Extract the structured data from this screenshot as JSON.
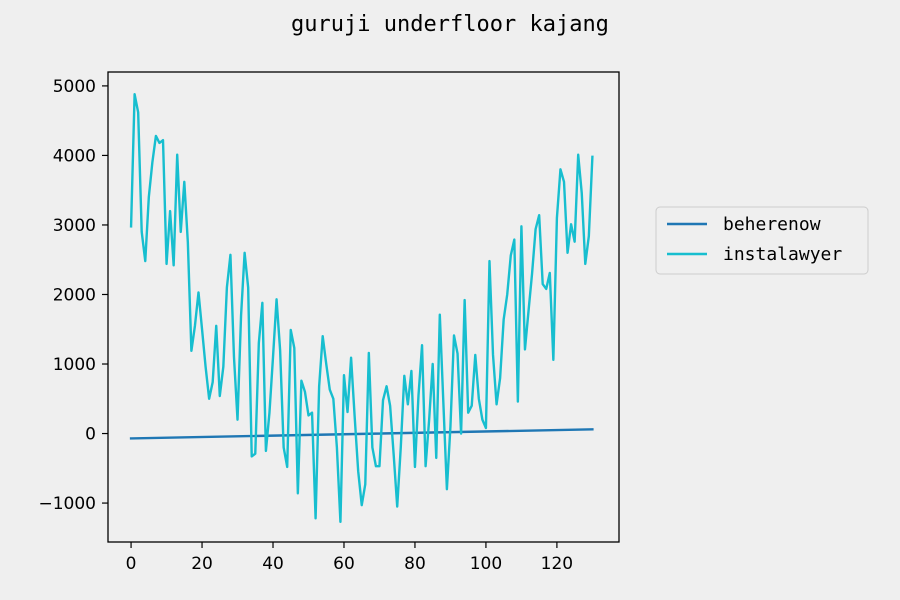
{
  "chart_data": {
    "type": "line",
    "title": "guruji underfloor kajang",
    "xlabel": "",
    "ylabel": "",
    "xlim": [
      -6.5,
      137.5
    ],
    "ylim": [
      -1560,
      5200
    ],
    "x_ticks": [
      0,
      20,
      40,
      60,
      80,
      100,
      120
    ],
    "y_ticks": [
      -1000,
      0,
      1000,
      2000,
      3000,
      4000,
      5000
    ],
    "x_tick_labels": [
      "0",
      "20",
      "40",
      "60",
      "80",
      "100",
      "120"
    ],
    "y_tick_labels": [
      "−1000",
      "0",
      "1000",
      "2000",
      "3000",
      "4000",
      "5000"
    ],
    "grid": false,
    "legend_position": "outside-right",
    "series": [
      {
        "name": "beherenow",
        "color": "#1f77b4",
        "x": [
          0,
          130
        ],
        "y": [
          -70,
          60
        ]
      },
      {
        "name": "instalawyer",
        "color": "#17becf",
        "x": [
          0,
          1,
          2,
          3,
          4,
          5,
          6,
          7,
          8,
          9,
          10,
          11,
          12,
          13,
          14,
          15,
          16,
          17,
          18,
          19,
          20,
          21,
          22,
          23,
          24,
          25,
          26,
          27,
          28,
          29,
          30,
          31,
          32,
          33,
          34,
          35,
          36,
          37,
          38,
          39,
          40,
          41,
          42,
          43,
          44,
          45,
          46,
          47,
          48,
          49,
          50,
          51,
          52,
          53,
          54,
          55,
          56,
          57,
          58,
          59,
          60,
          61,
          62,
          63,
          64,
          65,
          66,
          67,
          68,
          69,
          70,
          71,
          72,
          73,
          74,
          75,
          76,
          77,
          78,
          79,
          80,
          81,
          82,
          83,
          84,
          85,
          86,
          87,
          88,
          89,
          90,
          91,
          92,
          93,
          94,
          95,
          96,
          97,
          98,
          99,
          100,
          101,
          102,
          103,
          104,
          105,
          106,
          107,
          108,
          109,
          110,
          111,
          112,
          113,
          114,
          115,
          116,
          117,
          118,
          119,
          120,
          121,
          122,
          123,
          124,
          125,
          126,
          127,
          128,
          129,
          130
        ],
        "y": [
          2980,
          4880,
          4620,
          2900,
          2480,
          3400,
          3900,
          4280,
          4180,
          4220,
          2440,
          3200,
          2420,
          4010,
          2900,
          3620,
          2750,
          1190,
          1550,
          2030,
          1500,
          960,
          500,
          740,
          1550,
          540,
          960,
          2100,
          2570,
          1100,
          200,
          1700,
          2600,
          2100,
          -330,
          -290,
          1300,
          1880,
          -250,
          300,
          1100,
          1930,
          1200,
          -200,
          -480,
          1490,
          1230,
          -860,
          760,
          600,
          260,
          300,
          -1220,
          680,
          1400,
          1000,
          630,
          500,
          -200,
          -1270,
          840,
          310,
          1090,
          250,
          -540,
          -1030,
          -730,
          1160,
          -200,
          -470,
          -470,
          480,
          680,
          400,
          -300,
          -1050,
          -200,
          830,
          420,
          900,
          -480,
          550,
          1270,
          -470,
          200,
          1000,
          -350,
          1710,
          450,
          -800,
          100,
          1410,
          1150,
          0,
          1920,
          300,
          400,
          1130,
          500,
          200,
          80,
          2480,
          1130,
          420,
          800,
          1640,
          2000,
          2560,
          2790,
          460,
          2980,
          1210,
          1760,
          2300,
          2940,
          3140,
          2150,
          2080,
          2310,
          1060,
          3100,
          3800,
          3620,
          2600,
          3010,
          2760,
          4010,
          3460,
          2440,
          2840,
          3980
        ]
      }
    ]
  }
}
